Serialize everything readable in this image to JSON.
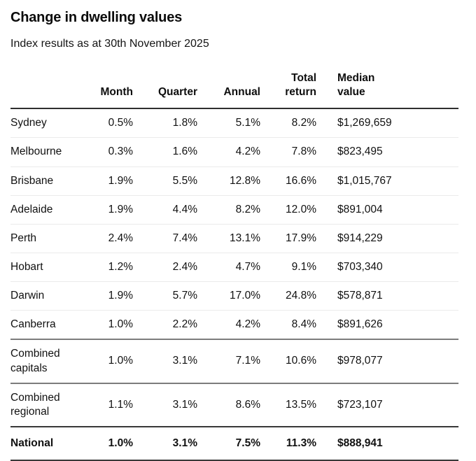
{
  "chart_data": {
    "type": "table",
    "title": "Change in dwelling values",
    "subtitle": "Index results as at 30th November 2025",
    "columns": [
      "",
      "Month",
      "Quarter",
      "Annual",
      "Total return",
      "Median value"
    ],
    "row_keys": [
      "region",
      "month",
      "quarter",
      "annual",
      "total_return",
      "median_value"
    ],
    "rows": [
      {
        "region": "Sydney",
        "month": "0.5%",
        "quarter": "1.8%",
        "annual": "5.1%",
        "total_return": "8.2%",
        "median_value": "$1,269,659",
        "divider": "light",
        "emphasis": false
      },
      {
        "region": "Melbourne",
        "month": "0.3%",
        "quarter": "1.6%",
        "annual": "4.2%",
        "total_return": "7.8%",
        "median_value": "$823,495",
        "divider": "light",
        "emphasis": false
      },
      {
        "region": "Brisbane",
        "month": "1.9%",
        "quarter": "5.5%",
        "annual": "12.8%",
        "total_return": "16.6%",
        "median_value": "$1,015,767",
        "divider": "light",
        "emphasis": false
      },
      {
        "region": "Adelaide",
        "month": "1.9%",
        "quarter": "4.4%",
        "annual": "8.2%",
        "total_return": "12.0%",
        "median_value": "$891,004",
        "divider": "light",
        "emphasis": false
      },
      {
        "region": "Perth",
        "month": "2.4%",
        "quarter": "7.4%",
        "annual": "13.1%",
        "total_return": "17.9%",
        "median_value": "$914,229",
        "divider": "light",
        "emphasis": false
      },
      {
        "region": "Hobart",
        "month": "1.2%",
        "quarter": "2.4%",
        "annual": "4.7%",
        "total_return": "9.1%",
        "median_value": "$703,340",
        "divider": "light",
        "emphasis": false
      },
      {
        "region": "Darwin",
        "month": "1.9%",
        "quarter": "5.7%",
        "annual": "17.0%",
        "total_return": "24.8%",
        "median_value": "$578,871",
        "divider": "light",
        "emphasis": false
      },
      {
        "region": "Canberra",
        "month": "1.0%",
        "quarter": "2.2%",
        "annual": "4.2%",
        "total_return": "8.4%",
        "median_value": "$891,626",
        "divider": "medium",
        "emphasis": false
      },
      {
        "region": "Combined capitals",
        "month": "1.0%",
        "quarter": "3.1%",
        "annual": "7.1%",
        "total_return": "10.6%",
        "median_value": "$978,077",
        "divider": "medium",
        "emphasis": false
      },
      {
        "region": "Combined regional",
        "month": "1.1%",
        "quarter": "3.1%",
        "annual": "8.6%",
        "total_return": "13.5%",
        "median_value": "$723,107",
        "divider": "dark",
        "emphasis": false
      },
      {
        "region": "National",
        "month": "1.0%",
        "quarter": "3.1%",
        "annual": "7.5%",
        "total_return": "11.3%",
        "median_value": "$888,941",
        "divider": "dark",
        "emphasis": true
      }
    ],
    "colors": {
      "text": "#111111",
      "header_rule": "#2e2e2e",
      "light_rule": "#ebebeb",
      "medium_rule": "#7c7c7c",
      "dark_rule": "#383838",
      "background": "#ffffff"
    },
    "layout": {
      "grid": "horizontal rules only",
      "numeric_columns_align": "right",
      "median_value_align": "left"
    }
  }
}
